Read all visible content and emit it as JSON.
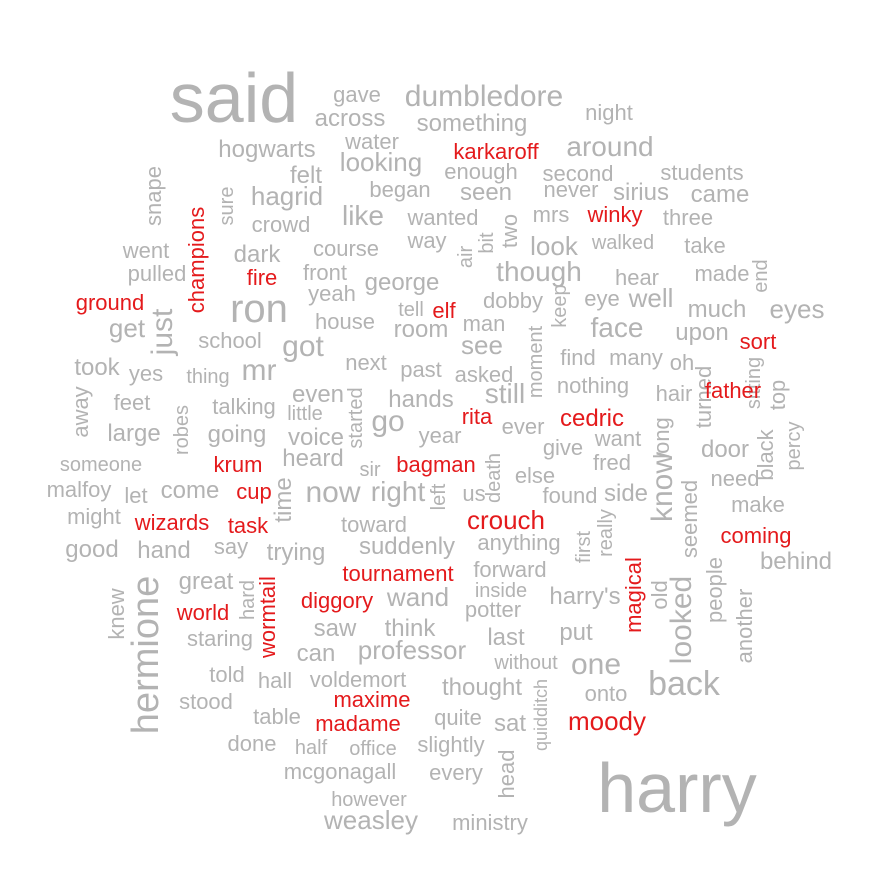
{
  "chart_data": {
    "type": "wordcloud",
    "colors": {
      "default": "#b3b3b3",
      "highlight": "#e41a1c"
    },
    "words": [
      {
        "text": "said",
        "w": 3.2,
        "hi": false
      },
      {
        "text": "harry",
        "w": 3.2,
        "hi": false
      },
      {
        "text": "gave",
        "w": 1.2,
        "hi": false
      },
      {
        "text": "dumbledore",
        "w": 1.5,
        "hi": false
      },
      {
        "text": "across",
        "w": 1.2,
        "hi": false
      },
      {
        "text": "night",
        "w": 1.1,
        "hi": false
      },
      {
        "text": "something",
        "w": 1.3,
        "hi": false
      },
      {
        "text": "water",
        "w": 1.1,
        "hi": false
      },
      {
        "text": "hogwarts",
        "w": 1.3,
        "hi": false
      },
      {
        "text": "karkaroff",
        "w": 1.2,
        "hi": true
      },
      {
        "text": "around",
        "w": 1.5,
        "hi": false
      },
      {
        "text": "looking",
        "w": 1.4,
        "hi": false
      },
      {
        "text": "felt",
        "w": 1.2,
        "hi": false
      },
      {
        "text": "enough",
        "w": 1.1,
        "hi": false
      },
      {
        "text": "second",
        "w": 1.2,
        "hi": false
      },
      {
        "text": "students",
        "w": 1.2,
        "hi": false
      },
      {
        "text": "snape",
        "w": 1.2,
        "hi": false
      },
      {
        "text": "sure",
        "w": 1.1,
        "hi": false
      },
      {
        "text": "hagrid",
        "w": 1.4,
        "hi": false
      },
      {
        "text": "began",
        "w": 1.1,
        "hi": false
      },
      {
        "text": "seen",
        "w": 1.2,
        "hi": false
      },
      {
        "text": "never",
        "w": 1.2,
        "hi": false
      },
      {
        "text": "sirius",
        "w": 1.2,
        "hi": false
      },
      {
        "text": "came",
        "w": 1.3,
        "hi": false
      },
      {
        "text": "champions",
        "w": 1.2,
        "hi": true
      },
      {
        "text": "crowd",
        "w": 1.2,
        "hi": false
      },
      {
        "text": "like",
        "w": 1.5,
        "hi": false
      },
      {
        "text": "wanted",
        "w": 1.1,
        "hi": false
      },
      {
        "text": "two",
        "w": 1.2,
        "hi": false
      },
      {
        "text": "mrs",
        "w": 1.2,
        "hi": false
      },
      {
        "text": "winky",
        "w": 1.2,
        "hi": true
      },
      {
        "text": "three",
        "w": 1.2,
        "hi": false
      },
      {
        "text": "went",
        "w": 1.2,
        "hi": false
      },
      {
        "text": "dark",
        "w": 1.2,
        "hi": false
      },
      {
        "text": "course",
        "w": 1.2,
        "hi": false
      },
      {
        "text": "way",
        "w": 1.2,
        "hi": false
      },
      {
        "text": "air",
        "w": 1.1,
        "hi": false
      },
      {
        "text": "bit",
        "w": 1.1,
        "hi": false
      },
      {
        "text": "look",
        "w": 1.3,
        "hi": false
      },
      {
        "text": "walked",
        "w": 1.1,
        "hi": false
      },
      {
        "text": "take",
        "w": 1.2,
        "hi": false
      },
      {
        "text": "pulled",
        "w": 1.2,
        "hi": false
      },
      {
        "text": "fire",
        "w": 1.2,
        "hi": true
      },
      {
        "text": "front",
        "w": 1.2,
        "hi": false
      },
      {
        "text": "george",
        "w": 1.2,
        "hi": false
      },
      {
        "text": "though",
        "w": 1.5,
        "hi": false
      },
      {
        "text": "hear",
        "w": 1.1,
        "hi": false
      },
      {
        "text": "made",
        "w": 1.2,
        "hi": false
      },
      {
        "text": "end",
        "w": 1.1,
        "hi": false
      },
      {
        "text": "ground",
        "w": 1.2,
        "hi": true
      },
      {
        "text": "yeah",
        "w": 1.2,
        "hi": false
      },
      {
        "text": "tell",
        "w": 1.1,
        "hi": false
      },
      {
        "text": "elf",
        "w": 1.2,
        "hi": true
      },
      {
        "text": "dobby",
        "w": 1.2,
        "hi": false
      },
      {
        "text": "keep",
        "w": 1.1,
        "hi": false
      },
      {
        "text": "eye",
        "w": 1.2,
        "hi": false
      },
      {
        "text": "well",
        "w": 1.3,
        "hi": false
      },
      {
        "text": "much",
        "w": 1.2,
        "hi": false
      },
      {
        "text": "eyes",
        "w": 1.3,
        "hi": false
      },
      {
        "text": "get",
        "w": 1.4,
        "hi": false
      },
      {
        "text": "ron",
        "w": 2.0,
        "hi": false
      },
      {
        "text": "house",
        "w": 1.2,
        "hi": false
      },
      {
        "text": "room",
        "w": 1.2,
        "hi": false
      },
      {
        "text": "man",
        "w": 1.1,
        "hi": false
      },
      {
        "text": "face",
        "w": 1.5,
        "hi": false
      },
      {
        "text": "upon",
        "w": 1.2,
        "hi": false
      },
      {
        "text": "just",
        "w": 1.5,
        "hi": false
      },
      {
        "text": "school",
        "w": 1.1,
        "hi": false
      },
      {
        "text": "got",
        "w": 1.5,
        "hi": false
      },
      {
        "text": "see",
        "w": 1.4,
        "hi": false
      },
      {
        "text": "sort",
        "w": 1.2,
        "hi": true
      },
      {
        "text": "moment",
        "w": 1.1,
        "hi": false
      },
      {
        "text": "find",
        "w": 1.1,
        "hi": false
      },
      {
        "text": "many",
        "w": 1.2,
        "hi": false
      },
      {
        "text": "took",
        "w": 1.2,
        "hi": false
      },
      {
        "text": "yes",
        "w": 1.2,
        "hi": false
      },
      {
        "text": "thing",
        "w": 1.1,
        "hi": false
      },
      {
        "text": "mr",
        "w": 1.6,
        "hi": false
      },
      {
        "text": "next",
        "w": 1.2,
        "hi": false
      },
      {
        "text": "past",
        "w": 1.2,
        "hi": false
      },
      {
        "text": "asked",
        "w": 1.2,
        "hi": false
      },
      {
        "text": "oh",
        "w": 1.2,
        "hi": false
      },
      {
        "text": "away",
        "w": 1.2,
        "hi": false
      },
      {
        "text": "even",
        "w": 1.2,
        "hi": false
      },
      {
        "text": "still",
        "w": 1.4,
        "hi": false
      },
      {
        "text": "nothing",
        "w": 1.2,
        "hi": false
      },
      {
        "text": "hair",
        "w": 1.2,
        "hi": false
      },
      {
        "text": "turned",
        "w": 1.2,
        "hi": false
      },
      {
        "text": "sitting",
        "w": 1.2,
        "hi": false
      },
      {
        "text": "feet",
        "w": 1.2,
        "hi": false
      },
      {
        "text": "robes",
        "w": 1.2,
        "hi": false
      },
      {
        "text": "talking",
        "w": 1.1,
        "hi": false
      },
      {
        "text": "little",
        "w": 1.1,
        "hi": false
      },
      {
        "text": "hands",
        "w": 1.2,
        "hi": false
      },
      {
        "text": "started",
        "w": 1.1,
        "hi": false
      },
      {
        "text": "father",
        "w": 1.2,
        "hi": true
      },
      {
        "text": "top",
        "w": 1.2,
        "hi": false
      },
      {
        "text": "large",
        "w": 1.2,
        "hi": false
      },
      {
        "text": "going",
        "w": 1.4,
        "hi": false
      },
      {
        "text": "voice",
        "w": 1.4,
        "hi": false
      },
      {
        "text": "go",
        "w": 1.5,
        "hi": false
      },
      {
        "text": "rita",
        "w": 1.2,
        "hi": true
      },
      {
        "text": "cedric",
        "w": 1.3,
        "hi": true
      },
      {
        "text": "ever",
        "w": 1.2,
        "hi": false
      },
      {
        "text": "year",
        "w": 1.2,
        "hi": false
      },
      {
        "text": "want",
        "w": 1.2,
        "hi": false
      },
      {
        "text": "long",
        "w": 1.2,
        "hi": false
      },
      {
        "text": "black",
        "w": 1.2,
        "hi": false
      },
      {
        "text": "percy",
        "w": 1.2,
        "hi": false
      },
      {
        "text": "someone",
        "w": 1.1,
        "hi": false
      },
      {
        "text": "krum",
        "w": 1.2,
        "hi": true
      },
      {
        "text": "heard",
        "w": 1.2,
        "hi": false
      },
      {
        "text": "sir",
        "w": 1.1,
        "hi": false
      },
      {
        "text": "bagman",
        "w": 1.3,
        "hi": true
      },
      {
        "text": "give",
        "w": 1.2,
        "hi": false
      },
      {
        "text": "fred",
        "w": 1.2,
        "hi": false
      },
      {
        "text": "door",
        "w": 1.2,
        "hi": false
      },
      {
        "text": "need",
        "w": 1.2,
        "hi": false
      },
      {
        "text": "malfoy",
        "w": 1.2,
        "hi": false
      },
      {
        "text": "let",
        "w": 1.2,
        "hi": false
      },
      {
        "text": "come",
        "w": 1.3,
        "hi": false
      },
      {
        "text": "cup",
        "w": 1.2,
        "hi": true
      },
      {
        "text": "time",
        "w": 1.3,
        "hi": false
      },
      {
        "text": "now",
        "w": 1.6,
        "hi": false
      },
      {
        "text": "right",
        "w": 1.5,
        "hi": false
      },
      {
        "text": "left",
        "w": 1.1,
        "hi": false
      },
      {
        "text": "us",
        "w": 1.2,
        "hi": false
      },
      {
        "text": "death",
        "w": 1.1,
        "hi": false
      },
      {
        "text": "else",
        "w": 1.2,
        "hi": false
      },
      {
        "text": "found",
        "w": 1.1,
        "hi": false
      },
      {
        "text": "side",
        "w": 1.2,
        "hi": false
      },
      {
        "text": "know",
        "w": 1.5,
        "hi": false
      },
      {
        "text": "make",
        "w": 1.2,
        "hi": false
      },
      {
        "text": "might",
        "w": 1.2,
        "hi": false
      },
      {
        "text": "wizards",
        "w": 1.2,
        "hi": true
      },
      {
        "text": "task",
        "w": 1.2,
        "hi": true
      },
      {
        "text": "toward",
        "w": 1.2,
        "hi": false
      },
      {
        "text": "crouch",
        "w": 1.4,
        "hi": true
      },
      {
        "text": "really",
        "w": 1.1,
        "hi": false
      },
      {
        "text": "seemed",
        "w": 1.2,
        "hi": false
      },
      {
        "text": "coming",
        "w": 1.2,
        "hi": true
      },
      {
        "text": "good",
        "w": 1.3,
        "hi": false
      },
      {
        "text": "hand",
        "w": 1.3,
        "hi": false
      },
      {
        "text": "say",
        "w": 1.2,
        "hi": false
      },
      {
        "text": "trying",
        "w": 1.2,
        "hi": false
      },
      {
        "text": "suddenly",
        "w": 1.2,
        "hi": false
      },
      {
        "text": "anything",
        "w": 1.2,
        "hi": false
      },
      {
        "text": "first",
        "w": 1.2,
        "hi": false
      },
      {
        "text": "behind",
        "w": 1.3,
        "hi": false
      },
      {
        "text": "hermione",
        "w": 2.0,
        "hi": false
      },
      {
        "text": "great",
        "w": 1.3,
        "hi": false
      },
      {
        "text": "tournament",
        "w": 1.2,
        "hi": true
      },
      {
        "text": "forward",
        "w": 1.2,
        "hi": false
      },
      {
        "text": "magical",
        "w": 1.2,
        "hi": true
      },
      {
        "text": "old",
        "w": 1.2,
        "hi": false
      },
      {
        "text": "people",
        "w": 1.2,
        "hi": false
      },
      {
        "text": "wormtail",
        "w": 1.2,
        "hi": true
      },
      {
        "text": "hard",
        "w": 1.2,
        "hi": false
      },
      {
        "text": "diggory",
        "w": 1.2,
        "hi": true
      },
      {
        "text": "wand",
        "w": 1.4,
        "hi": false
      },
      {
        "text": "inside",
        "w": 1.1,
        "hi": false
      },
      {
        "text": "harry's",
        "w": 1.3,
        "hi": false
      },
      {
        "text": "knew",
        "w": 1.2,
        "hi": false
      },
      {
        "text": "world",
        "w": 1.2,
        "hi": true
      },
      {
        "text": "potter",
        "w": 1.3,
        "hi": false
      },
      {
        "text": "looked",
        "w": 1.6,
        "hi": false
      },
      {
        "text": "another",
        "w": 1.2,
        "hi": false
      },
      {
        "text": "staring",
        "w": 1.2,
        "hi": false
      },
      {
        "text": "saw",
        "w": 1.3,
        "hi": false
      },
      {
        "text": "think",
        "w": 1.3,
        "hi": false
      },
      {
        "text": "put",
        "w": 1.3,
        "hi": false
      },
      {
        "text": "last",
        "w": 1.3,
        "hi": false
      },
      {
        "text": "can",
        "w": 1.3,
        "hi": false
      },
      {
        "text": "professor",
        "w": 1.4,
        "hi": false
      },
      {
        "text": "without",
        "w": 1.1,
        "hi": false
      },
      {
        "text": "one",
        "w": 1.5,
        "hi": false
      },
      {
        "text": "told",
        "w": 1.2,
        "hi": false
      },
      {
        "text": "hall",
        "w": 1.2,
        "hi": false
      },
      {
        "text": "voldemort",
        "w": 1.2,
        "hi": false
      },
      {
        "text": "thought",
        "w": 1.3,
        "hi": false
      },
      {
        "text": "onto",
        "w": 1.1,
        "hi": false
      },
      {
        "text": "back",
        "w": 1.7,
        "hi": false
      },
      {
        "text": "stood",
        "w": 1.1,
        "hi": false
      },
      {
        "text": "maxime",
        "w": 1.2,
        "hi": true
      },
      {
        "text": "quidditch",
        "w": 1.0,
        "hi": false
      },
      {
        "text": "table",
        "w": 1.2,
        "hi": false
      },
      {
        "text": "madame",
        "w": 1.2,
        "hi": true
      },
      {
        "text": "quite",
        "w": 1.1,
        "hi": false
      },
      {
        "text": "sat",
        "w": 1.2,
        "hi": false
      },
      {
        "text": "moody",
        "w": 1.4,
        "hi": true
      },
      {
        "text": "done",
        "w": 1.2,
        "hi": false
      },
      {
        "text": "half",
        "w": 1.1,
        "hi": false
      },
      {
        "text": "office",
        "w": 1.1,
        "hi": false
      },
      {
        "text": "slightly",
        "w": 1.1,
        "hi": false
      },
      {
        "text": "head",
        "w": 1.2,
        "hi": false
      },
      {
        "text": "mcgonagall",
        "w": 1.2,
        "hi": false
      },
      {
        "text": "every",
        "w": 1.2,
        "hi": false
      },
      {
        "text": "however",
        "w": 1.1,
        "hi": false
      },
      {
        "text": "weasley",
        "w": 1.4,
        "hi": false
      },
      {
        "text": "ministry",
        "w": 1.2,
        "hi": false
      }
    ]
  }
}
